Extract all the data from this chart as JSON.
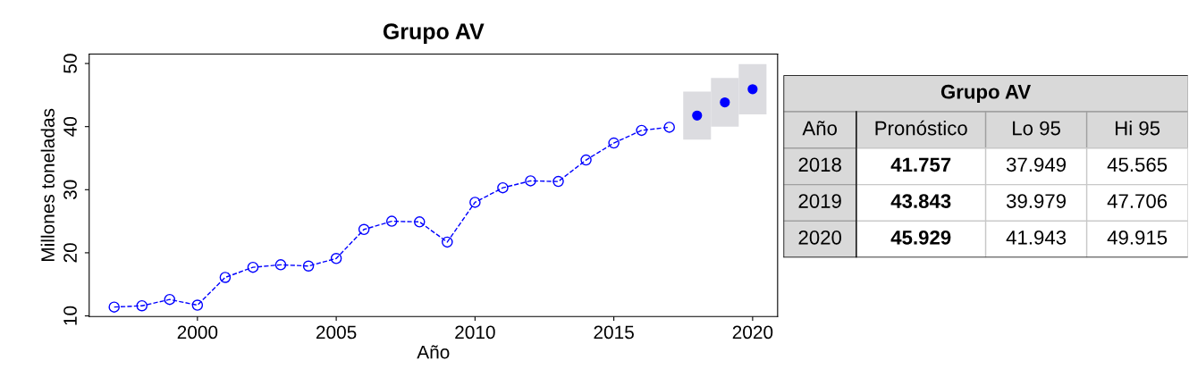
{
  "chart_data": [
    {
      "type": "line",
      "title": "Grupo AV",
      "xlabel": "Año",
      "ylabel": "Millones toneladas",
      "xlim": [
        1996.1,
        2020.9
      ],
      "ylim": [
        9.9,
        51.5
      ],
      "xticks": [
        2000,
        2005,
        2010,
        2015,
        2020
      ],
      "yticks": [
        10,
        20,
        30,
        40,
        50
      ],
      "grid": false,
      "legend": false,
      "tick_labels": true,
      "series": [
        {
          "color": "#0000ff",
          "marker": "circle",
          "line_style": "dashed",
          "x": [
            1997,
            1998,
            1999,
            2000,
            2001,
            2002,
            2003,
            2004,
            2005,
            2006,
            2007,
            2008,
            2009,
            2010,
            2011,
            2012,
            2013,
            2014,
            2015,
            2016,
            2017
          ],
          "values": [
            11.4,
            11.6,
            12.6,
            11.7,
            16.1,
            17.7,
            18.1,
            17.9,
            19.1,
            23.7,
            25.0,
            24.9,
            21.7,
            28.0,
            30.3,
            31.4,
            31.3,
            34.7,
            37.4,
            39.4,
            39.9
          ]
        },
        {
          "type": "scatter",
          "color": "#0000ff",
          "marker": "circle",
          "x": [
            2018,
            2019,
            2020
          ],
          "values": [
            41.757,
            43.843,
            45.929
          ],
          "errors": [
            [
              37.949,
              45.565
            ],
            [
              39.979,
              47.706
            ],
            [
              41.943,
              49.915
            ]
          ]
        }
      ]
    },
    {
      "type": "other",
      "title": "Grupo AV",
      "categories": [
        "Año",
        "Pronóstico",
        "Lo 95",
        "Hi 95"
      ],
      "y_categories": [
        "2018",
        "2019",
        "2020"
      ],
      "cell_labels": [
        [
          "41.757",
          "37.949",
          "45.565"
        ],
        [
          "43.843",
          "39.979",
          "47.706"
        ],
        [
          "45.929",
          "41.943",
          "49.915"
        ]
      ]
    }
  ]
}
